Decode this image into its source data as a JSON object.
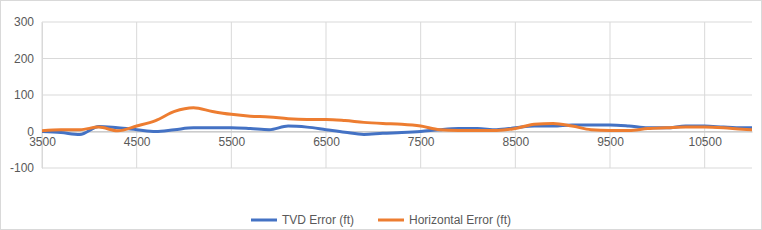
{
  "chart_data": {
    "type": "line",
    "x": [
      3500,
      3700,
      3900,
      4100,
      4300,
      4500,
      4700,
      4900,
      5100,
      5300,
      5500,
      5700,
      5900,
      6100,
      6300,
      6500,
      6700,
      6900,
      7100,
      7300,
      7500,
      7700,
      7900,
      8100,
      8300,
      8500,
      8700,
      8900,
      9100,
      9300,
      9500,
      9700,
      9900,
      10100,
      10300,
      10500,
      10700,
      10900,
      11000
    ],
    "series": [
      {
        "name": "TVD Error (ft)",
        "color": "#4472c4",
        "values": [
          0,
          -3,
          -8,
          14,
          10,
          5,
          0,
          5,
          10,
          10,
          10,
          8,
          5,
          15,
          12,
          5,
          -2,
          -8,
          -5,
          -3,
          0,
          5,
          8,
          8,
          5,
          10,
          15,
          15,
          18,
          18,
          18,
          15,
          10,
          10,
          15,
          15,
          12,
          10,
          10
        ]
      },
      {
        "name": "Horizontal Error (ft)",
        "color": "#ed7d31",
        "values": [
          2,
          5,
          5,
          12,
          2,
          15,
          30,
          55,
          65,
          55,
          47,
          42,
          40,
          35,
          33,
          33,
          30,
          25,
          22,
          20,
          15,
          5,
          3,
          3,
          3,
          8,
          20,
          22,
          15,
          5,
          3,
          3,
          8,
          10,
          12,
          12,
          10,
          6,
          5
        ]
      }
    ],
    "xlim": [
      3500,
      11000
    ],
    "xticks": [
      3500,
      4500,
      5500,
      6500,
      7500,
      8500,
      9500,
      10500
    ],
    "ylim": [
      -100,
      300
    ],
    "yticks": [
      -100,
      0,
      100,
      200,
      300
    ],
    "grid": true,
    "legend": "bottom"
  }
}
